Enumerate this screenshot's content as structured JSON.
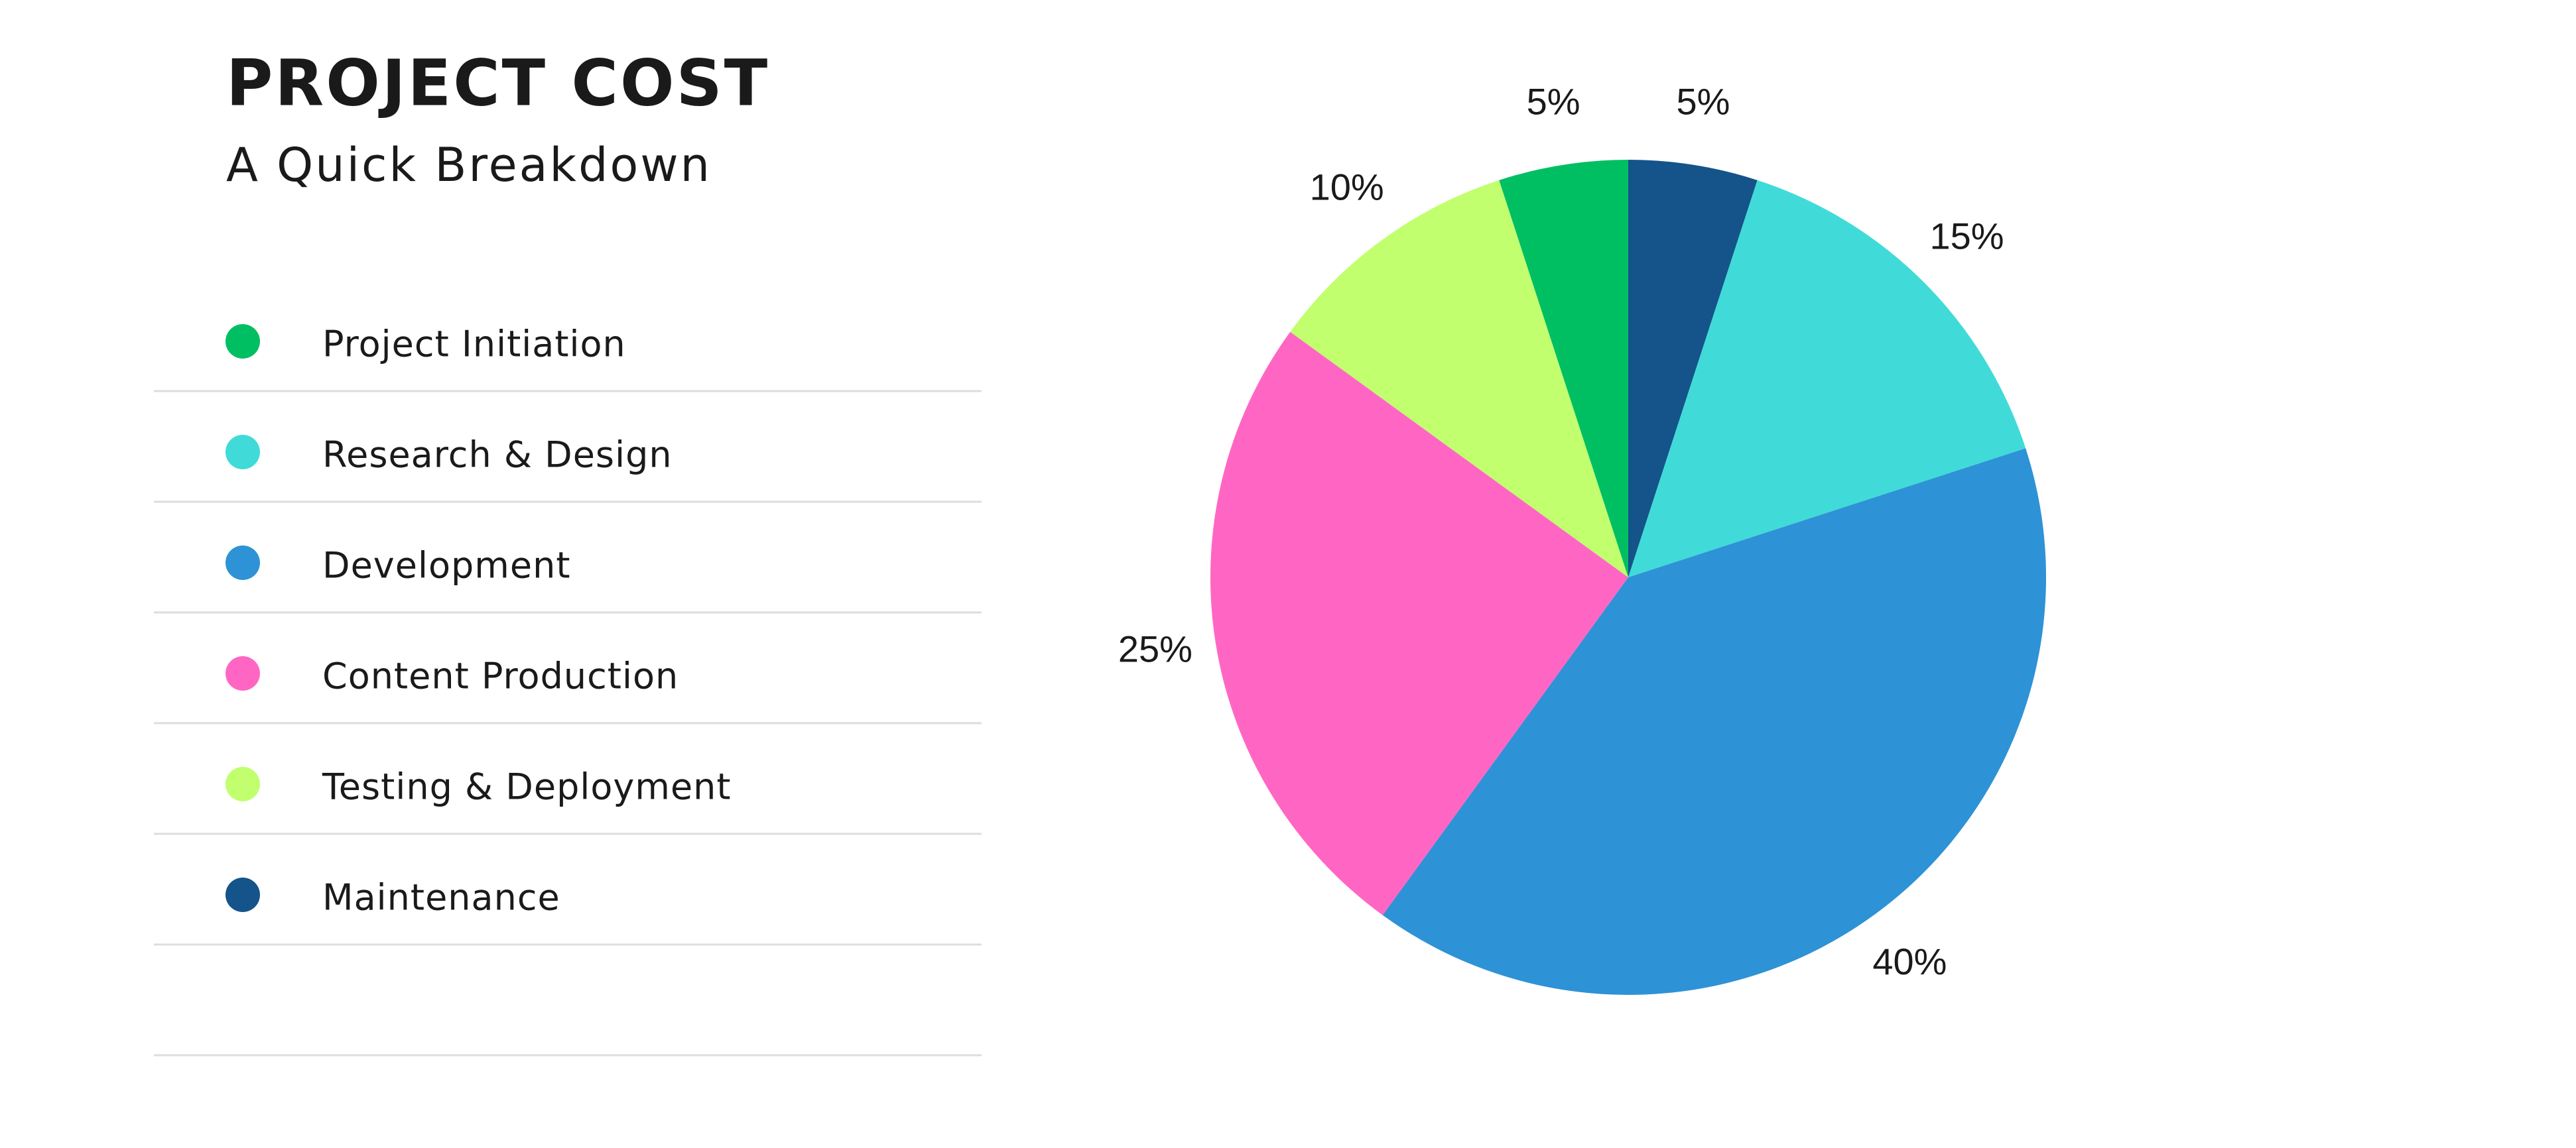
{
  "chart_data": {
    "type": "pie",
    "title": "PROJECT COST",
    "subtitle": "A Quick Breakdown",
    "categories": [
      "Project Initiation",
      "Research & Design",
      "Development",
      "Content Production",
      "Testing & Deployment",
      "Maintenance"
    ],
    "values": [
      5,
      15,
      40,
      25,
      10,
      5
    ],
    "value_labels": [
      "5%",
      "15%",
      "40%",
      "25%",
      "10%",
      "5%"
    ],
    "colors": [
      "#00bf63",
      "#40dbd8",
      "#2e92d6",
      "#ff66c4",
      "#c1ff6e",
      "#14548a"
    ]
  }
}
